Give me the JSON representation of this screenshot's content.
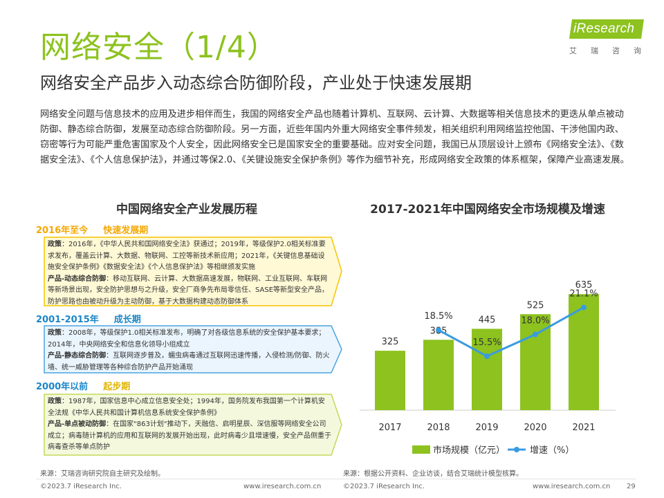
{
  "header": {
    "title": "网络安全（1/4）",
    "subtitle": "网络安全产品步入动态综合防御阶段，产业处于快速发展期"
  },
  "brand": {
    "name": "iResearch",
    "cn_chars": [
      "艾",
      "瑞",
      "咨",
      "询"
    ],
    "color": "#8dc21f"
  },
  "intro": {
    "text": "网络安全问题与信息技术的应用及进步相伴而生，我国的网络安全产品也随着计算机、互联网、云计算、大数据等相关信息技术的更迭从单点被动防御、静态综合防御，发展至动态综合防御阶段。另一方面，近些年国内外重大网络安全事件频发，相关组织利用网络监控他国、干涉他国内政、窃密等行为可能严重危害国家及个人安全，因此网络安全已是国家安全的重要基础。应对安全问题，我国已从顶层设计上颁布《网络安全法》、《数据安全法》、《个人信息保护法》，并通过等保2.0、《关键设施安全保护条例》等作为细节补充，形成网络安全政策的体系框架，保障产业高速发展。"
  },
  "history": {
    "title": "中国网络安全产业发展历程",
    "stages": [
      {
        "years": "2016年至今",
        "name": "快速发展期",
        "color": "#f5a800",
        "border": "#f5c400",
        "fill": "#fff9d6",
        "policy_label": "政策",
        "policy": "：2016年，《中华人民共和国网络安全法》获通过；2019年，等级保护2.0相关标准要求发布，覆盖云计算、大数据、物联网、工控等新技术新应用；2021年，《关键信息基础设施安全保护条例》《数据安全法》《个人信息保护法》等相继颁发实施",
        "product_label": "产品-动态综合防御",
        "product": "：移动互联网、云计算、大数据高速发展，物联网、工业互联网、车联网等新场景出现，安全防护思想与之升级，安全厂商争先布局零信任、SASE等新型安全产品，防护思路也由被动升级为主动防御，基于大数据构建动态防御体系"
      },
      {
        "years": "2001-2015年",
        "name": "成长期",
        "color": "#1a86c8",
        "border": "#4aa3df",
        "fill": "#eaf5fd",
        "policy_label": "政策",
        "policy": "：2008年，等级保护1.0相关标准发布，明确了对各级信息系统的安全保护基本要求；2014年，中央网络安全和信息化领导小组成立",
        "product_label": "产品-静态综合防御",
        "product": "：互联网逐步普及，蠕虫病毒通过互联网迅速传播，入侵检测/防御、防火墙、统一威胁管理等各种综合防护产品开始涌现"
      },
      {
        "years": "2000年以前",
        "name": "起步期",
        "color": "#e0b400",
        "border": "#c2d95a",
        "fill": "#f4f9dd",
        "policy_label": "政策",
        "policy": "：1987年，国家信息中心成立信息安全处；1994年，国务院发布我国第一个计算机安全法规《中华人民共和国计算机信息系统安全保护条例》",
        "product_label": "产品-单点被动防御",
        "product": "：在国家\"863计划\"推动下，天融信、启明星辰、深信服等网络安全公司成立；病毒随计算机的应用和互联网的发展开始出现，此时病毒少且增速慢，安全产品侧重于病毒查杀等单点防护"
      }
    ]
  },
  "chart_title": "2017-2021年中国网络安全市场规模及增速",
  "chart_data": {
    "type": "bar",
    "title": "2017-2021年中国网络安全市场规模及增速",
    "categories": [
      "2017",
      "2018",
      "2019",
      "2020",
      "2021"
    ],
    "series": [
      {
        "name": "市场规模（亿元）",
        "type": "bar",
        "color": "#8dc21f",
        "values": [
          325,
          385,
          445,
          525,
          635
        ],
        "labels": [
          "325",
          "385",
          "445",
          "525",
          "635"
        ]
      },
      {
        "name": "增速（%）",
        "type": "line",
        "color": "#3a9be0",
        "values": [
          null,
          18.5,
          15.5,
          18.0,
          21.1
        ],
        "labels": [
          "",
          "18.5%",
          "15.5%",
          "18.0%",
          "21.1%"
        ]
      }
    ],
    "bar_ylim": [
      0,
      700
    ],
    "line_ylim": [
      0,
      30
    ],
    "legend_position": "bottom",
    "grid": false
  },
  "sources": {
    "left": "来源：艾瑞咨询研究院自主研究及绘制。",
    "right": "来源：根据公开资料、企业访谈，结合艾瑞统计模型核算。"
  },
  "footer": {
    "copyright_left": "©2023.7 iResearch Inc.",
    "url_left": "www.iresearch.com.cn",
    "copyright_right": "©2023.7 iResearch Inc.",
    "url_right": "www.iresearch.com.cn",
    "page": "29"
  }
}
